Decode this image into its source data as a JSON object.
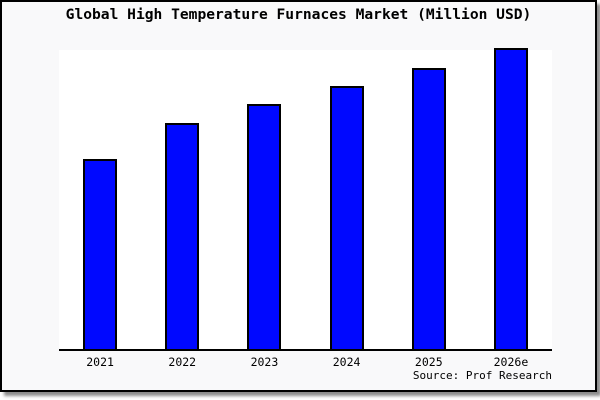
{
  "header": {
    "title": "Global High Temperature Furnaces Market (Million USD)"
  },
  "footer": {
    "source_credit": "Source: Prof Research"
  },
  "colors": {
    "bar_fill": "#0008FF",
    "bar_border": "#000000",
    "card_background": "#F9F9FA",
    "plot_background": "#FFFFFF",
    "card_border": "#000000",
    "axis_line": "#000000",
    "text": "#000000"
  },
  "chart_data": {
    "type": "bar",
    "title": "Global High Temperature Furnaces Market (Million USD)",
    "categories": [
      "2021",
      "2022",
      "2023",
      "2024",
      "2025",
      "2026e"
    ],
    "values": [
      63,
      75,
      81.5,
      87.5,
      93.5,
      100
    ],
    "value_note": "No y-axis scale is shown in the figure; values are relative bar heights indexed to 2026e = 100",
    "xlabel": "",
    "ylabel": "",
    "ylim": [
      0,
      100
    ],
    "grid": false,
    "legend": false,
    "axis": "bottom-only",
    "annotation": "Source: Prof Research"
  }
}
